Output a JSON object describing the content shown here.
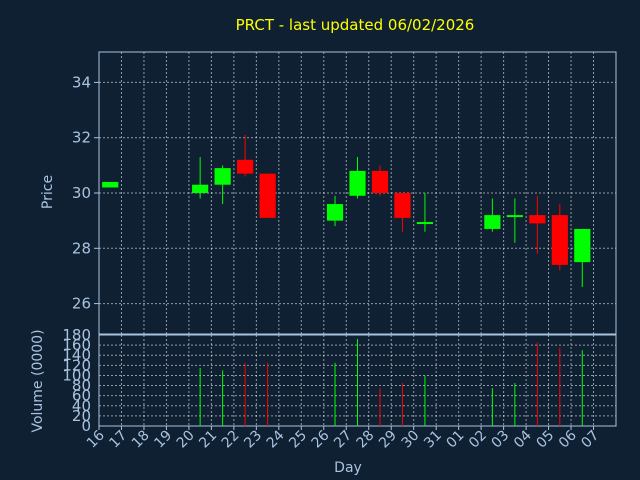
{
  "chart_data": {
    "type": "candlestick",
    "title": "PRCT - last updated 06/02/2026",
    "xlabel": "Day",
    "price_ylabel": "Price",
    "volume_ylabel": "Volume (0000)",
    "price_ylim": [
      24.9,
      35.1
    ],
    "price_yticks": [
      "26",
      "28",
      "30",
      "32",
      "34"
    ],
    "volume_ylim": [
      0,
      180
    ],
    "volume_yticks": [
      "0",
      "20",
      "40",
      "60",
      "80",
      "100",
      "120",
      "140",
      "160",
      "180"
    ],
    "x_ticks": [
      "16",
      "17",
      "18",
      "19",
      "20",
      "21",
      "22",
      "23",
      "24",
      "25",
      "26",
      "27",
      "28",
      "29",
      "30",
      "31",
      "01",
      "02",
      "03",
      "04",
      "05",
      "06",
      "07"
    ],
    "grid": true,
    "colors": {
      "up": "#00ff00",
      "down": "#ff0000",
      "background": "#0f2033",
      "title": "#ffff00",
      "text": "#a9c3df",
      "frame": "#a9c3df"
    },
    "candles": [
      {
        "day": "16",
        "open": 30.2,
        "high": 30.4,
        "low": 30.2,
        "close": 30.4,
        "volume": 0
      },
      {
        "day": "20",
        "open": 30.0,
        "high": 31.3,
        "low": 29.8,
        "close": 30.3,
        "volume": 115
      },
      {
        "day": "21",
        "open": 30.3,
        "high": 31.0,
        "low": 29.6,
        "close": 30.9,
        "volume": 110
      },
      {
        "day": "22",
        "open": 31.2,
        "high": 32.1,
        "low": 30.6,
        "close": 30.7,
        "volume": 125
      },
      {
        "day": "23",
        "open": 30.7,
        "high": 30.7,
        "low": 29.1,
        "close": 29.1,
        "volume": 125
      },
      {
        "day": "26",
        "open": 29.0,
        "high": 29.9,
        "low": 28.8,
        "close": 29.6,
        "volume": 125
      },
      {
        "day": "27",
        "open": 29.9,
        "high": 31.3,
        "low": 29.8,
        "close": 30.8,
        "volume": 172
      },
      {
        "day": "28",
        "open": 30.8,
        "high": 31.0,
        "low": 29.9,
        "close": 30.0,
        "volume": 75
      },
      {
        "day": "29",
        "open": 30.0,
        "high": 30.0,
        "low": 28.6,
        "close": 29.1,
        "volume": 85
      },
      {
        "day": "30",
        "open": 28.9,
        "high": 30.0,
        "low": 28.6,
        "close": 28.95,
        "volume": 100
      },
      {
        "day": "02",
        "open": 28.7,
        "high": 29.8,
        "low": 28.6,
        "close": 29.2,
        "volume": 75
      },
      {
        "day": "03",
        "open": 29.15,
        "high": 29.8,
        "low": 28.2,
        "close": 29.2,
        "volume": 85
      },
      {
        "day": "04",
        "open": 29.2,
        "high": 29.9,
        "low": 27.8,
        "close": 28.9,
        "volume": 165
      },
      {
        "day": "05",
        "open": 29.2,
        "high": 29.6,
        "low": 27.2,
        "close": 27.4,
        "volume": 155
      },
      {
        "day": "06",
        "open": 27.5,
        "high": 28.7,
        "low": 26.6,
        "close": 28.7,
        "volume": 150
      }
    ]
  }
}
